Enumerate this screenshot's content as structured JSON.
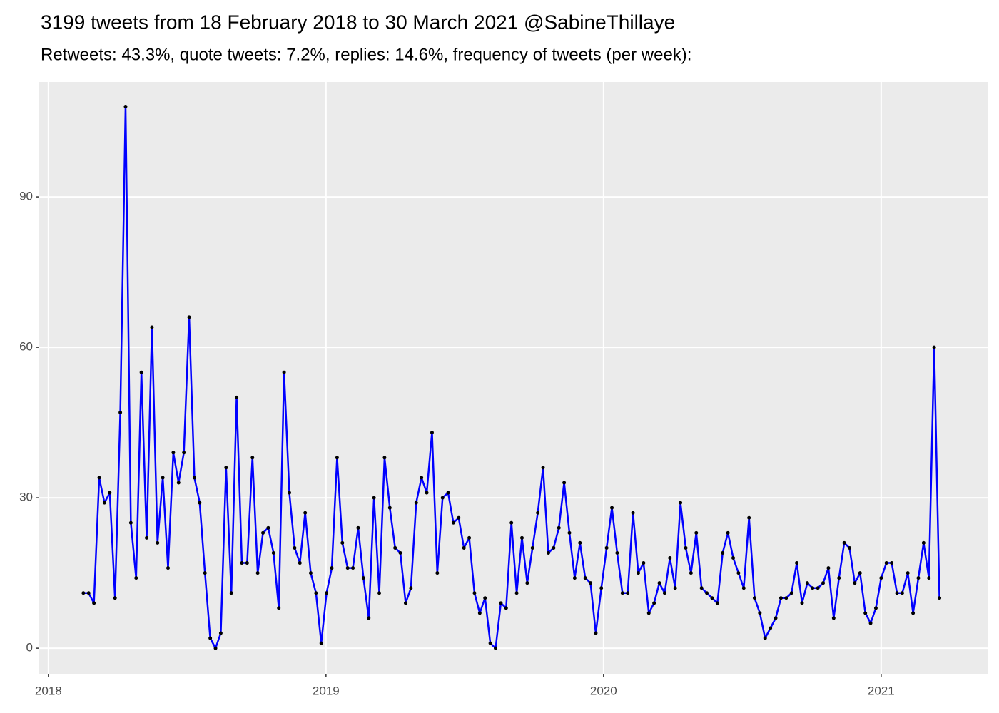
{
  "chart_data": {
    "type": "line",
    "title": "3199 tweets from 18 February 2018 to 30 March 2021 @SabineThillaye",
    "subtitle": "Retweets: 43.3%, quote tweets: 7.2%, replies: 14.6%, frequency of tweets (per week):",
    "x": [
      2018.126,
      2018.145,
      2018.164,
      2018.183,
      2018.202,
      2018.221,
      2018.24,
      2018.259,
      2018.278,
      2018.297,
      2018.316,
      2018.335,
      2018.354,
      2018.373,
      2018.393,
      2018.412,
      2018.431,
      2018.45,
      2018.469,
      2018.488,
      2018.507,
      2018.526,
      2018.545,
      2018.564,
      2018.583,
      2018.602,
      2018.621,
      2018.64,
      2018.659,
      2018.678,
      2018.697,
      2018.716,
      2018.735,
      2018.754,
      2018.773,
      2018.792,
      2018.811,
      2018.83,
      2018.849,
      2018.868,
      2018.887,
      2018.906,
      2018.925,
      2018.945,
      2018.964,
      2018.983,
      2019.002,
      2019.021,
      2019.04,
      2019.059,
      2019.078,
      2019.097,
      2019.116,
      2019.135,
      2019.154,
      2019.173,
      2019.192,
      2019.211,
      2019.23,
      2019.249,
      2019.268,
      2019.287,
      2019.306,
      2019.325,
      2019.344,
      2019.363,
      2019.382,
      2019.401,
      2019.42,
      2019.44,
      2019.459,
      2019.478,
      2019.497,
      2019.516,
      2019.535,
      2019.554,
      2019.573,
      2019.592,
      2019.611,
      2019.63,
      2019.649,
      2019.668,
      2019.687,
      2019.706,
      2019.725,
      2019.744,
      2019.763,
      2019.782,
      2019.801,
      2019.82,
      2019.839,
      2019.858,
      2019.877,
      2019.896,
      2019.915,
      2019.934,
      2019.953,
      2019.972,
      2019.992,
      2020.011,
      2020.03,
      2020.049,
      2020.068,
      2020.087,
      2020.106,
      2020.125,
      2020.144,
      2020.163,
      2020.182,
      2020.201,
      2020.22,
      2020.239,
      2020.258,
      2020.277,
      2020.296,
      2020.315,
      2020.334,
      2020.353,
      2020.372,
      2020.391,
      2020.41,
      2020.429,
      2020.448,
      2020.467,
      2020.486,
      2020.505,
      2020.524,
      2020.544,
      2020.563,
      2020.582,
      2020.601,
      2020.62,
      2020.639,
      2020.658,
      2020.677,
      2020.696,
      2020.715,
      2020.734,
      2020.753,
      2020.772,
      2020.791,
      2020.81,
      2020.829,
      2020.848,
      2020.867,
      2020.886,
      2020.905,
      2020.924,
      2020.943,
      2020.962,
      2020.981,
      2021.0,
      2021.019,
      2021.038,
      2021.057,
      2021.076,
      2021.096,
      2021.115,
      2021.134,
      2021.153,
      2021.172,
      2021.191,
      2021.21
    ],
    "series": [
      {
        "color": "#0000ff",
        "point_color": "#000000",
        "values": [
          11,
          11,
          9,
          34,
          29,
          31,
          10,
          47,
          108,
          25,
          14,
          55,
          22,
          64,
          21,
          34,
          16,
          39,
          33,
          39,
          66,
          34,
          29,
          15,
          2,
          0,
          3,
          36,
          11,
          50,
          17,
          17,
          38,
          15,
          23,
          24,
          19,
          8,
          55,
          31,
          20,
          17,
          27,
          15,
          11,
          1,
          11,
          16,
          38,
          21,
          16,
          16,
          24,
          14,
          6,
          30,
          11,
          38,
          28,
          20,
          19,
          9,
          12,
          29,
          34,
          31,
          43,
          15,
          30,
          31,
          25,
          26,
          20,
          22,
          11,
          7,
          10,
          1,
          0,
          9,
          8,
          25,
          11,
          22,
          13,
          20,
          27,
          36,
          19,
          20,
          24,
          33,
          23,
          14,
          21,
          14,
          13,
          3,
          12,
          20,
          28,
          19,
          11,
          11,
          27,
          15,
          17,
          7,
          9,
          13,
          11,
          18,
          12,
          29,
          20,
          15,
          23,
          12,
          11,
          10,
          9,
          19,
          23,
          18,
          15,
          12,
          26,
          10,
          7,
          2,
          4,
          6,
          10,
          10,
          11,
          17,
          9,
          13,
          12,
          12,
          13,
          16,
          6,
          14,
          21,
          20,
          13,
          15,
          7,
          5,
          8,
          14,
          17,
          17,
          11,
          11,
          15,
          7,
          14,
          21,
          14,
          60,
          10
        ]
      }
    ],
    "xlim": [
      2017.967,
      2021.386
    ],
    "xticks": [
      2018,
      2019,
      2020,
      2021
    ],
    "ylim": [
      -5.1,
      112.9
    ],
    "yticks": [
      0,
      30,
      60,
      90
    ],
    "grid": true
  }
}
